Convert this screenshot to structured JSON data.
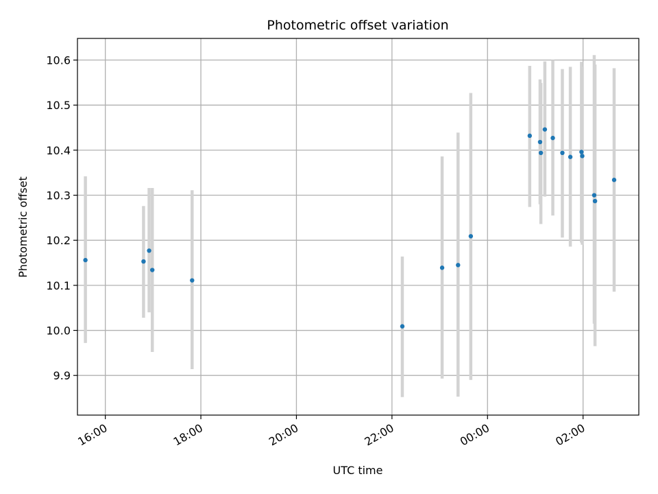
{
  "chart_data": {
    "type": "scatter",
    "title": "Photometric offset variation",
    "xlabel": "UTC time",
    "ylabel": "Photometric offset",
    "x_axis_type": "time",
    "xlim": [
      "15:25",
      "03:10"
    ],
    "ylim": [
      9.812,
      10.648
    ],
    "x_ticks": [
      "16:00",
      "18:00",
      "20:00",
      "22:00",
      "00:00",
      "02:00"
    ],
    "y_ticks": [
      9.9,
      10.0,
      10.1,
      10.2,
      10.3,
      10.4,
      10.5,
      10.6
    ],
    "y_tick_labels": [
      "9.9",
      "10.0",
      "10.1",
      "10.2",
      "10.3",
      "10.4",
      "10.5",
      "10.6"
    ],
    "grid": true,
    "colors": {
      "points": "#1f77b4",
      "error_bars": "#d3d3d3",
      "grid": "#b0b0b0"
    },
    "points": [
      {
        "x": "15:35",
        "y": 10.156,
        "ylo": 9.972,
        "yhi": 10.342
      },
      {
        "x": "16:48",
        "y": 10.153,
        "ylo": 10.028,
        "yhi": 10.276
      },
      {
        "x": "16:55",
        "y": 10.177,
        "ylo": 10.04,
        "yhi": 10.316
      },
      {
        "x": "16:59",
        "y": 10.134,
        "ylo": 9.952,
        "yhi": 10.316
      },
      {
        "x": "17:49",
        "y": 10.111,
        "ylo": 9.914,
        "yhi": 10.311
      },
      {
        "x": "22:13",
        "y": 10.009,
        "ylo": 9.852,
        "yhi": 10.164
      },
      {
        "x": "23:03",
        "y": 10.139,
        "ylo": 9.893,
        "yhi": 10.386
      },
      {
        "x": "23:23",
        "y": 10.145,
        "ylo": 9.853,
        "yhi": 10.439
      },
      {
        "x": "23:39",
        "y": 10.209,
        "ylo": 9.89,
        "yhi": 10.527
      },
      {
        "x": "00:53",
        "y": 10.432,
        "ylo": 10.274,
        "yhi": 10.587
      },
      {
        "x": "01:06",
        "y": 10.418,
        "ylo": 10.28,
        "yhi": 10.557
      },
      {
        "x": "01:07",
        "y": 10.394,
        "ylo": 10.236,
        "yhi": 10.549
      },
      {
        "x": "01:12",
        "y": 10.446,
        "ylo": 10.297,
        "yhi": 10.597
      },
      {
        "x": "01:22",
        "y": 10.427,
        "ylo": 10.255,
        "yhi": 10.6
      },
      {
        "x": "01:34",
        "y": 10.394,
        "ylo": 10.206,
        "yhi": 10.58
      },
      {
        "x": "01:44",
        "y": 10.385,
        "ylo": 10.186,
        "yhi": 10.585
      },
      {
        "x": "01:58",
        "y": 10.396,
        "ylo": 10.195,
        "yhi": 10.596
      },
      {
        "x": "01:59",
        "y": 10.387,
        "ylo": 10.19,
        "yhi": 10.585
      },
      {
        "x": "02:14",
        "y": 10.3,
        "ylo": 10.015,
        "yhi": 10.611
      },
      {
        "x": "02:15",
        "y": 10.287,
        "ylo": 9.965,
        "yhi": 10.59
      },
      {
        "x": "02:39",
        "y": 10.334,
        "ylo": 10.086,
        "yhi": 10.582
      }
    ]
  }
}
